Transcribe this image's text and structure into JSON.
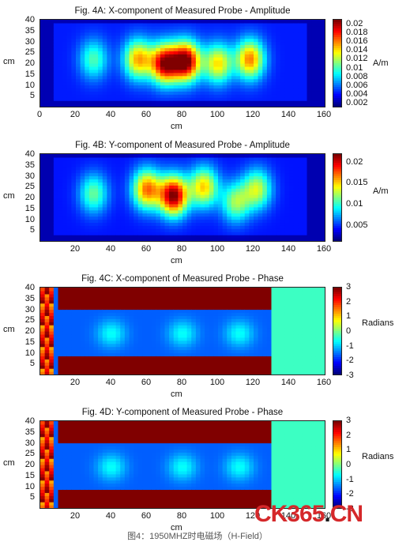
{
  "chart_data": [
    {
      "type": "heatmap",
      "title": "Fig. 4A: X-component of Measured Probe - Amplitude",
      "xlabel": "cm",
      "ylabel": "cm",
      "xlim": [
        0,
        160
      ],
      "ylim": [
        0,
        40
      ],
      "x_ticks": [
        "0",
        "20",
        "40",
        "60",
        "80",
        "100",
        "120",
        "140",
        "160"
      ],
      "y_ticks": [
        "5",
        "10",
        "15",
        "20",
        "25",
        "30",
        "35",
        "40"
      ],
      "colorbar": {
        "label": "A/m",
        "ticks": [
          "0.02",
          "0.018",
          "0.016",
          "0.014",
          "0.012",
          "0.01",
          "0.008",
          "0.006",
          "0.004",
          "0.002"
        ],
        "range": [
          0.001,
          0.021
        ],
        "colormap": "jet"
      },
      "peaks": [
        {
          "x": 30,
          "y": 22,
          "value": 0.01
        },
        {
          "x": 55,
          "y": 22,
          "value": 0.015
        },
        {
          "x": 70,
          "y": 20,
          "value": 0.02
        },
        {
          "x": 82,
          "y": 21,
          "value": 0.021
        },
        {
          "x": 100,
          "y": 20,
          "value": 0.014
        },
        {
          "x": 118,
          "y": 22,
          "value": 0.016
        }
      ],
      "background_value": 0.004
    },
    {
      "type": "heatmap",
      "title": "Fig. 4B: Y-component of Measured Probe - Amplitude",
      "xlabel": "cm",
      "ylabel": "cm",
      "xlim": [
        0,
        160
      ],
      "ylim": [
        0,
        40
      ],
      "x_ticks": [
        "20",
        "40",
        "60",
        "80",
        "100",
        "120",
        "140",
        "160"
      ],
      "y_ticks": [
        "5",
        "10",
        "15",
        "20",
        "25",
        "30",
        "35",
        "40"
      ],
      "colorbar": {
        "label": "A/m",
        "ticks": [
          "0.02",
          "0.015",
          "0.01",
          "0.005"
        ],
        "range": [
          0.001,
          0.022
        ],
        "colormap": "jet"
      },
      "peaks": [
        {
          "x": 30,
          "y": 22,
          "value": 0.011
        },
        {
          "x": 60,
          "y": 24,
          "value": 0.017
        },
        {
          "x": 75,
          "y": 21,
          "value": 0.022
        },
        {
          "x": 92,
          "y": 25,
          "value": 0.015
        },
        {
          "x": 110,
          "y": 18,
          "value": 0.012
        },
        {
          "x": 122,
          "y": 24,
          "value": 0.013
        }
      ],
      "background_value": 0.004
    },
    {
      "type": "heatmap",
      "title": "Fig. 4C: X-component of Measured Probe - Phase",
      "xlabel": "cm",
      "ylabel": "cm",
      "xlim": [
        0,
        160
      ],
      "ylim": [
        0,
        40
      ],
      "x_ticks": [
        "20",
        "40",
        "60",
        "80",
        "100",
        "120",
        "140",
        "160"
      ],
      "y_ticks": [
        "5",
        "10",
        "15",
        "20",
        "25",
        "30",
        "35",
        "40"
      ],
      "colorbar": {
        "label": "Radians",
        "ticks": [
          "3",
          "2",
          "1",
          "0",
          "-1",
          "-2",
          "-3"
        ],
        "range": [
          -3,
          3
        ],
        "colormap": "jet"
      },
      "bands": [
        {
          "y_from": 30,
          "y_to": 40,
          "value": 3
        },
        {
          "y_from": 0,
          "y_to": 8,
          "value": 3
        }
      ],
      "background_value": -1.7
    },
    {
      "type": "heatmap",
      "title": "Fig. 4D: Y-component of Measured Probe - Phase",
      "xlabel": "cm",
      "ylabel": "cm",
      "xlim": [
        0,
        160
      ],
      "ylim": [
        0,
        40
      ],
      "x_ticks": [
        "20",
        "40",
        "60",
        "80",
        "100",
        "120",
        "140",
        "160"
      ],
      "y_ticks": [
        "5",
        "10",
        "15",
        "20",
        "25",
        "30",
        "35",
        "40"
      ],
      "colorbar": {
        "label": "Radians",
        "ticks": [
          "3",
          "2",
          "1",
          "0",
          "-1",
          "-2",
          "-3"
        ],
        "range": [
          -3,
          3
        ],
        "colormap": "jet"
      },
      "bands": [
        {
          "y_from": 30,
          "y_to": 40,
          "value": 3
        },
        {
          "y_from": 0,
          "y_to": 8,
          "value": 3
        }
      ],
      "background_value": -1.7
    }
  ],
  "watermark": {
    "text": "CK365",
    "dot": ".",
    "suffix": "CN"
  },
  "caption": "图4：1950MHZ时电磁场（H-Field）"
}
